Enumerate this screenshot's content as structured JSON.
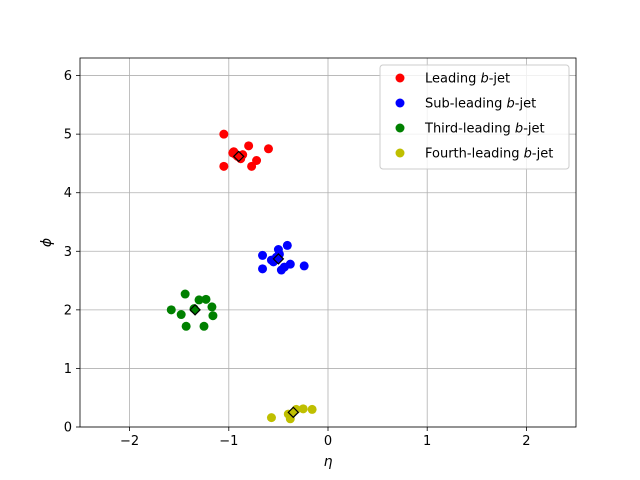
{
  "chart_data": {
    "type": "scatter",
    "xlabel": "η",
    "ylabel": "ϕ",
    "xlim": [
      -2.5,
      2.5
    ],
    "ylim": [
      0,
      6.3
    ],
    "xticks": [
      -2,
      -1,
      0,
      1,
      2
    ],
    "yticks": [
      0,
      1,
      2,
      3,
      4,
      5,
      6
    ],
    "grid": true,
    "legend_position": "top-right",
    "series": [
      {
        "name": "Leading",
        "name_suffix": "b-jet",
        "color": "#ff0000",
        "x": [
          -1.05,
          -1.05,
          -0.96,
          -0.93,
          -0.88,
          -0.86,
          -0.8,
          -0.77,
          -0.72,
          -0.6,
          -0.91,
          -0.95
        ],
        "y": [
          5.0,
          4.45,
          4.68,
          4.65,
          4.58,
          4.65,
          4.8,
          4.45,
          4.55,
          4.75,
          4.62,
          4.7
        ],
        "centroid": [
          -0.9,
          4.62
        ]
      },
      {
        "name": "Sub-leading",
        "name_suffix": "b-jet",
        "color": "#0000ff",
        "x": [
          -0.66,
          -0.66,
          -0.57,
          -0.55,
          -0.5,
          -0.49,
          -0.47,
          -0.44,
          -0.41,
          -0.38,
          -0.24,
          -0.52
        ],
        "y": [
          2.93,
          2.7,
          2.85,
          2.82,
          3.03,
          2.95,
          2.68,
          2.73,
          3.1,
          2.78,
          2.75,
          2.9
        ],
        "centroid": [
          -0.5,
          2.87
        ]
      },
      {
        "name": "Third-leading",
        "name_suffix": "b-jet",
        "color": "#008000",
        "x": [
          -1.58,
          -1.48,
          -1.44,
          -1.43,
          -1.3,
          -1.25,
          -1.23,
          -1.17,
          -1.16,
          -1.35
        ],
        "y": [
          2.0,
          1.92,
          2.27,
          1.72,
          2.17,
          1.72,
          2.18,
          2.05,
          1.9,
          2.02
        ],
        "centroid": [
          -1.34,
          2.0
        ]
      },
      {
        "name": "Fourth-leading",
        "name_suffix": "b-jet",
        "color": "#bfbf00",
        "x": [
          -0.57,
          -0.4,
          -0.38,
          -0.32,
          -0.25,
          -0.16
        ],
        "y": [
          0.16,
          0.22,
          0.14,
          0.3,
          0.31,
          0.3
        ],
        "centroid": [
          -0.35,
          0.25
        ]
      }
    ]
  }
}
